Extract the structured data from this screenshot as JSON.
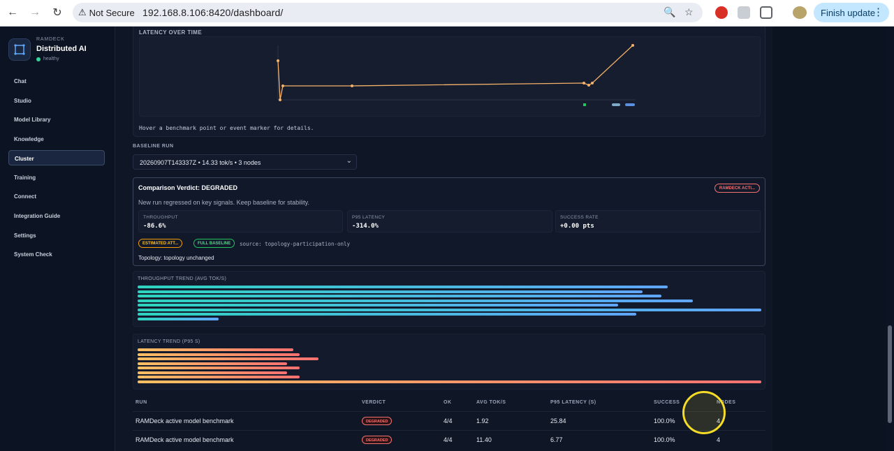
{
  "browser": {
    "security_label": "Not Secure",
    "url": "192.168.8.106:8420/dashboard/",
    "update_label": "Finish update"
  },
  "sidebar": {
    "kicker": "RAMDECK",
    "title": "Distributed AI",
    "status": "healthy",
    "items": [
      {
        "label": "Chat"
      },
      {
        "label": "Studio"
      },
      {
        "label": "Model Library"
      },
      {
        "label": "Knowledge"
      },
      {
        "label": "Cluster",
        "active": true
      },
      {
        "label": "Training"
      },
      {
        "label": "Connect"
      },
      {
        "label": "Integration Guide"
      },
      {
        "label": "Settings"
      },
      {
        "label": "System Check"
      }
    ]
  },
  "latency_chart": {
    "title": "LATENCY OVER TIME",
    "hint": "Hover a benchmark point or event marker for details.",
    "line_color": "#f6b26b"
  },
  "baseline": {
    "label": "BASELINE RUN",
    "selected": "20260907T143337Z • 14.33 tok/s • 3 nodes"
  },
  "verdict": {
    "title": "Comparison Verdict: DEGRADED",
    "badge": "RAMDECK ACTI...",
    "description": "New run regressed on key signals. Keep baseline for stability.",
    "metrics": [
      {
        "label": "THROUGHPUT",
        "value": "-86.6%"
      },
      {
        "label": "P95 LATENCY",
        "value": "-314.0%"
      },
      {
        "label": "SUCCESS RATE",
        "value": "+0.00 pts"
      }
    ],
    "pills": [
      "ESTIMATED ATT...",
      "FULL BASELINE"
    ],
    "source": "source: topology-participation-only",
    "topology": "Topology: topology unchanged"
  },
  "throughput_trend": {
    "title": "THROUGHPUT TREND (AVG TOK/S)",
    "fractions": [
      0.85,
      0.81,
      0.84,
      0.89,
      0.77,
      1.0,
      0.8,
      0.13
    ]
  },
  "latency_trend": {
    "title": "LATENCY TREND (P95 S)",
    "fractions": [
      0.25,
      0.26,
      0.29,
      0.24,
      0.26,
      0.24,
      0.26,
      1.0
    ]
  },
  "runs_table": {
    "headers": [
      "RUN",
      "VERDICT",
      "OK",
      "AVG TOK/S",
      "P95 LATENCY (S)",
      "SUCCESS",
      "NODES"
    ],
    "rows": [
      {
        "run": "RAMDeck active model benchmark",
        "verdict": "DEGRADED",
        "ok": "4/4",
        "avg": "1.92",
        "p95": "25.84",
        "success": "100.0%",
        "nodes": "4"
      },
      {
        "run": "RAMDeck active model benchmark",
        "verdict": "DEGRADED",
        "ok": "4/4",
        "avg": "11.40",
        "p95": "6.77",
        "success": "100.0%",
        "nodes": "4"
      }
    ]
  },
  "colors": {
    "accent_blue": "#60a5fa",
    "accent_teal": "#2dd4bf",
    "degraded_red": "#f87171",
    "latency_orange": "#fbbf62"
  }
}
